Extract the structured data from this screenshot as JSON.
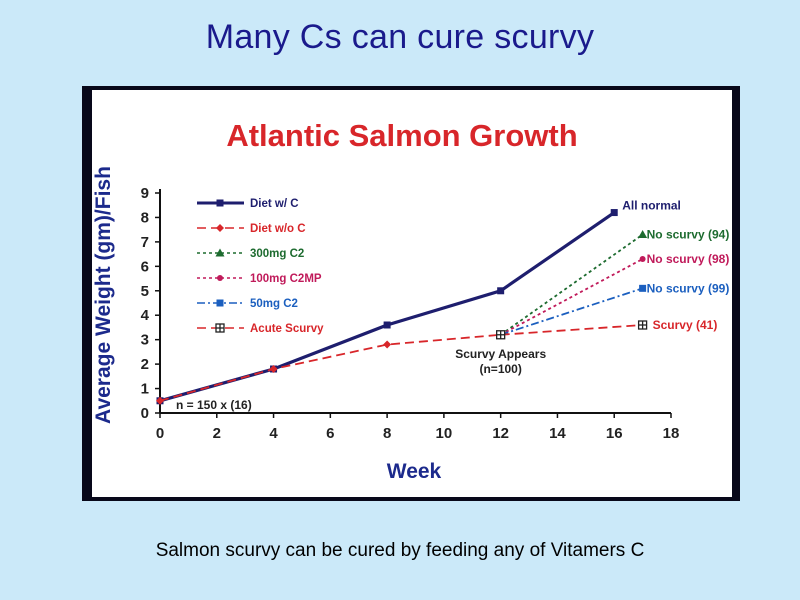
{
  "slide": {
    "title": "Many Cs can cure scurvy",
    "caption": "Salmon scurvy can be cured by feeding any of Vitamers C"
  },
  "colors": {
    "slide_background": "#cbe9f9",
    "title_color": "#1a1a8c",
    "chart_title_color": "#d8262a",
    "axis_label_color": "#1c2a8c"
  },
  "chart_data": {
    "type": "line",
    "title": "Atlantic Salmon Growth",
    "xlabel": "Week",
    "ylabel": "Average Weight (gm)/Fish",
    "xlim": [
      0,
      18
    ],
    "ylim": [
      0,
      9
    ],
    "xticks": [
      0,
      2,
      4,
      6,
      8,
      10,
      12,
      14,
      16,
      18
    ],
    "yticks": [
      0,
      1,
      2,
      3,
      4,
      5,
      6,
      7,
      8,
      9
    ],
    "grid": false,
    "legend_position": "top-left",
    "series": [
      {
        "name": "Diet w/ C",
        "color": "#1e1e6e",
        "dash": "solid",
        "marker": "square",
        "points": [
          [
            0,
            0.5
          ],
          [
            4,
            1.8
          ],
          [
            8,
            3.6
          ],
          [
            12,
            5.0
          ],
          [
            16,
            8.2
          ]
        ]
      },
      {
        "name": "Diet w/o C",
        "color": "#d8262a",
        "dash": "dashed",
        "marker": "diamond",
        "points": [
          [
            0,
            0.5
          ],
          [
            4,
            1.8
          ],
          [
            8,
            2.8
          ],
          [
            12,
            3.2
          ]
        ]
      },
      {
        "name": "300mg C2",
        "color": "#1d6b2f",
        "dash": "dotted",
        "marker": "triangle",
        "points": [
          [
            12,
            3.2
          ],
          [
            17,
            7.3
          ]
        ]
      },
      {
        "name": "100mg C2MP",
        "color": "#c01a5a",
        "dash": "dotted",
        "marker": "circle",
        "points": [
          [
            12,
            3.2
          ],
          [
            17,
            6.3
          ]
        ]
      },
      {
        "name": "50mg C2",
        "color": "#1b5fbf",
        "dash": "dashdot",
        "marker": "square",
        "points": [
          [
            12,
            3.2
          ],
          [
            17,
            5.1
          ]
        ]
      },
      {
        "name": "Acute Scurvy",
        "color": "#d8262a",
        "dash": "dashed",
        "marker": "crossbox",
        "points": [
          [
            12,
            3.2
          ],
          [
            17,
            3.6
          ]
        ]
      }
    ],
    "annotations": [
      {
        "text": "All normal",
        "x": 16,
        "y": 8.2,
        "color": "#1e1e6e"
      },
      {
        "text": "No scurvy (94)",
        "x": 17,
        "y": 7.3,
        "color": "#1d6b2f"
      },
      {
        "text": "No scurvy (98)",
        "x": 17,
        "y": 6.3,
        "color": "#c01a5a"
      },
      {
        "text": "No scurvy (99)",
        "x": 17,
        "y": 5.1,
        "color": "#1b5fbf"
      },
      {
        "text": "Scurvy (41)",
        "x": 17,
        "y": 3.6,
        "color": "#d8262a"
      },
      {
        "text": "Scurvy Appears",
        "x": 12,
        "y": 3.2,
        "color": "#222222"
      },
      {
        "text": "(n=100)",
        "x": 12,
        "y": 3.2,
        "color": "#222222"
      },
      {
        "text": "n = 150 x (16)",
        "x": 0,
        "y": 0.5,
        "color": "#222222"
      }
    ]
  }
}
